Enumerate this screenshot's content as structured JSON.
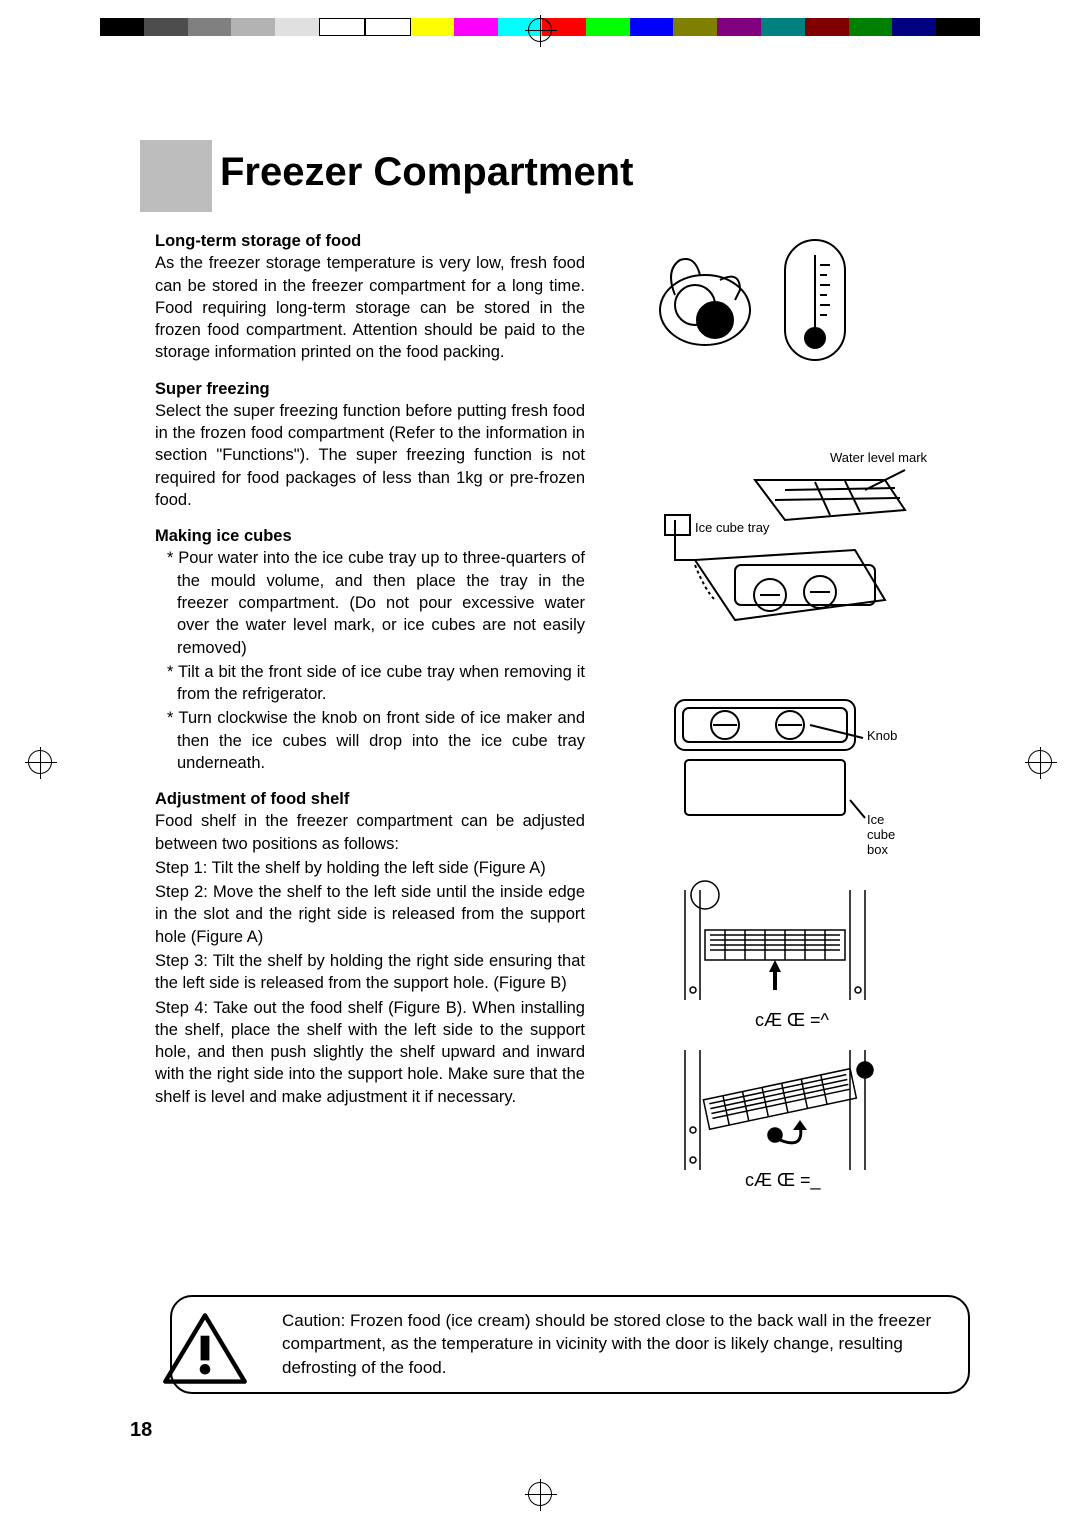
{
  "color_bar": [
    "#000000",
    "#4d4d4d",
    "#808080",
    "#b3b3b3",
    "#e0e0e0",
    "#ffffff",
    "#ffffff",
    "#ffff00",
    "#ff00ff",
    "#00ffff",
    "#ff0000",
    "#00ff00",
    "#0000ff",
    "#808000",
    "#800080",
    "#008080",
    "#800000",
    "#008000",
    "#000080",
    "#000000"
  ],
  "title": "Freezer Compartment",
  "sections": {
    "s1_h": "Long-term storage of food",
    "s1_p": "As the freezer storage temperature is very low, fresh food can be stored in the freezer compartment for a long time. Food requiring long-term storage can be stored in the frozen food compartment. Attention should be paid to the storage information printed on the food packing.",
    "s2_h": "Super freezing",
    "s2_p": "Select the super freezing function before putting fresh food in the frozen food compartment (Refer to the information in section \"Functions\"). The super freezing function is not required for food packages of less than 1kg or pre-frozen food.",
    "s3_h": "Making ice cubes",
    "s3_b1": "* Pour water into the ice cube tray up to three-quarters of the mould volume, and then place the tray in the freezer compartment. (Do not pour excessive water over the water level mark, or ice cubes are not easily removed)",
    "s3_b2": "* Tilt a bit the front side of ice cube tray when removing it from the refrigerator.",
    "s3_b3": "* Turn clockwise the knob on front side of ice maker and then the ice cubes will drop into the ice cube tray underneath.",
    "s4_h": "Adjustment of food shelf",
    "s4_p1": "Food shelf in the freezer compartment can be adjusted between two positions as follows:",
    "s4_p2": "Step 1: Tilt the shelf by holding the left side (Figure A)",
    "s4_p3": "Step 2: Move the shelf to the left side until the inside edge in the slot and the right side is released from the support hole (Figure A)",
    "s4_p4": "Step 3: Tilt the shelf by holding the right side ensuring that the left side is released from the support hole. (Figure B)",
    "s4_p5": "Step 4: Take out the food shelf (Figure B). When installing the shelf, place the shelf with the left side to the support hole, and then push slightly the shelf upward and inward with the right side into the support hole. Make sure that the shelf is level and make adjustment it if necessary."
  },
  "labels": {
    "water_mark": "Water level mark",
    "ice_tray": "Ice cube tray",
    "knob": "Knob",
    "ice_box": "Ice cube box",
    "fig_a": "cÆ  Œ =^",
    "fig_b": "cÆ  Œ =_"
  },
  "caution": "Caution: Frozen food (ice cream) should be stored close to the back wall in the freezer compartment, as the temperature in vicinity with the door is likely change, resulting defrosting of the food.",
  "page_number": "18"
}
